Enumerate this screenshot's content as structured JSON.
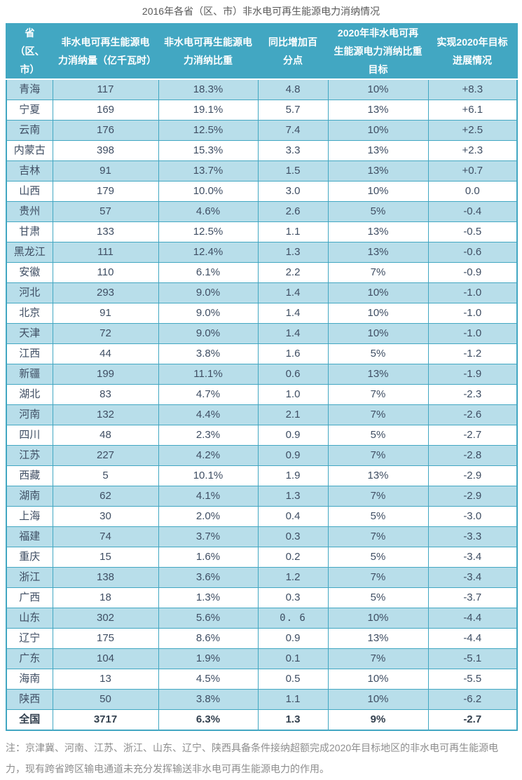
{
  "page_title": "2016年各省（区、市）非水电可再生能源电力消纳情况",
  "colors": {
    "header_bg": "#42a7c2",
    "header_text": "#ffffff",
    "row_alt_bg": "#b8deea",
    "row_bg": "#ffffff",
    "border": "#42a7c2",
    "cell_text": "#3f4e63",
    "title_text": "#595959",
    "note_text": "#8d8d8d"
  },
  "chart_data": {
    "type": "table",
    "title": "2016年各省（区、市）非水电可再生能源电力消纳情况",
    "columns": [
      "省（区、市）",
      "非水电可再生能源电力消纳量（亿千瓦时）",
      "非水电可再生能源电力消纳比重",
      "同比增加百分点",
      "2020年非水电可再生能源电力消纳比重目标",
      "实现2020年目标进展情况"
    ],
    "rows": [
      [
        "青海",
        "117",
        "18.3%",
        "4.8",
        "10%",
        "+8.3"
      ],
      [
        "宁夏",
        "169",
        "19.1%",
        "5.7",
        "13%",
        "+6.1"
      ],
      [
        "云南",
        "176",
        "12.5%",
        "7.4",
        "10%",
        "+2.5"
      ],
      [
        "内蒙古",
        "398",
        "15.3%",
        "3.3",
        "13%",
        "+2.3"
      ],
      [
        "吉林",
        "91",
        "13.7%",
        "1.5",
        "13%",
        "+0.7"
      ],
      [
        "山西",
        "179",
        "10.0%",
        "3.0",
        "10%",
        "0.0"
      ],
      [
        "贵州",
        "57",
        "4.6%",
        "2.6",
        "5%",
        "-0.4"
      ],
      [
        "甘肃",
        "133",
        "12.5%",
        "1.1",
        "13%",
        "-0.5"
      ],
      [
        "黑龙江",
        "111",
        "12.4%",
        "1.3",
        "13%",
        "-0.6"
      ],
      [
        "安徽",
        "110",
        "6.1%",
        "2.2",
        "7%",
        "-0.9"
      ],
      [
        "河北",
        "293",
        "9.0%",
        "1.4",
        "10%",
        "-1.0"
      ],
      [
        "北京",
        "91",
        "9.0%",
        "1.4",
        "10%",
        "-1.0"
      ],
      [
        "天津",
        "72",
        "9.0%",
        "1.4",
        "10%",
        "-1.0"
      ],
      [
        "江西",
        "44",
        "3.8%",
        "1.6",
        "5%",
        "-1.2"
      ],
      [
        "新疆",
        "199",
        "11.1%",
        "0.6",
        "13%",
        "-1.9"
      ],
      [
        "湖北",
        "83",
        "4.7%",
        "1.0",
        "7%",
        "-2.3"
      ],
      [
        "河南",
        "132",
        "4.4%",
        "2.1",
        "7%",
        "-2.6"
      ],
      [
        "四川",
        "48",
        "2.3%",
        "0.9",
        "5%",
        "-2.7"
      ],
      [
        "江苏",
        "227",
        "4.2%",
        "0.9",
        "7%",
        "-2.8"
      ],
      [
        "西藏",
        "5",
        "10.1%",
        "1.9",
        "13%",
        "-2.9"
      ],
      [
        "湖南",
        "62",
        "4.1%",
        "1.3",
        "7%",
        "-2.9"
      ],
      [
        "上海",
        "30",
        "2.0%",
        "0.4",
        "5%",
        "-3.0"
      ],
      [
        "福建",
        "74",
        "3.7%",
        "0.3",
        "7%",
        "-3.3"
      ],
      [
        "重庆",
        "15",
        "1.6%",
        "0.2",
        "5%",
        "-3.4"
      ],
      [
        "浙江",
        "138",
        "3.6%",
        "1.2",
        "7%",
        "-3.4"
      ],
      [
        "广西",
        "18",
        "1.3%",
        "0.3",
        "5%",
        "-3.7"
      ],
      [
        "山东",
        "302",
        "5.6%",
        "0. 6",
        "10%",
        "-4.4"
      ],
      [
        "辽宁",
        "175",
        "8.6%",
        "0.9",
        "13%",
        "-4.4"
      ],
      [
        "广东",
        "104",
        "1.9%",
        "0.1",
        "7%",
        "-5.1"
      ],
      [
        "海南",
        "13",
        "4.5%",
        "0.5",
        "10%",
        "-5.5"
      ],
      [
        "陕西",
        "50",
        "3.8%",
        "1.1",
        "10%",
        "-6.2"
      ]
    ],
    "total_row": [
      "全国",
      "3717",
      "6.3%",
      "1.3",
      "9%",
      "-2.7"
    ],
    "note": "注：京津冀、河南、江苏、浙江、山东、辽宁、陕西具备条件接纳超额完成2020年目标地区的非水电可再生能源电力，现有跨省跨区输电通道未充分发挥输送非水电可再生能源电力的作用。"
  }
}
